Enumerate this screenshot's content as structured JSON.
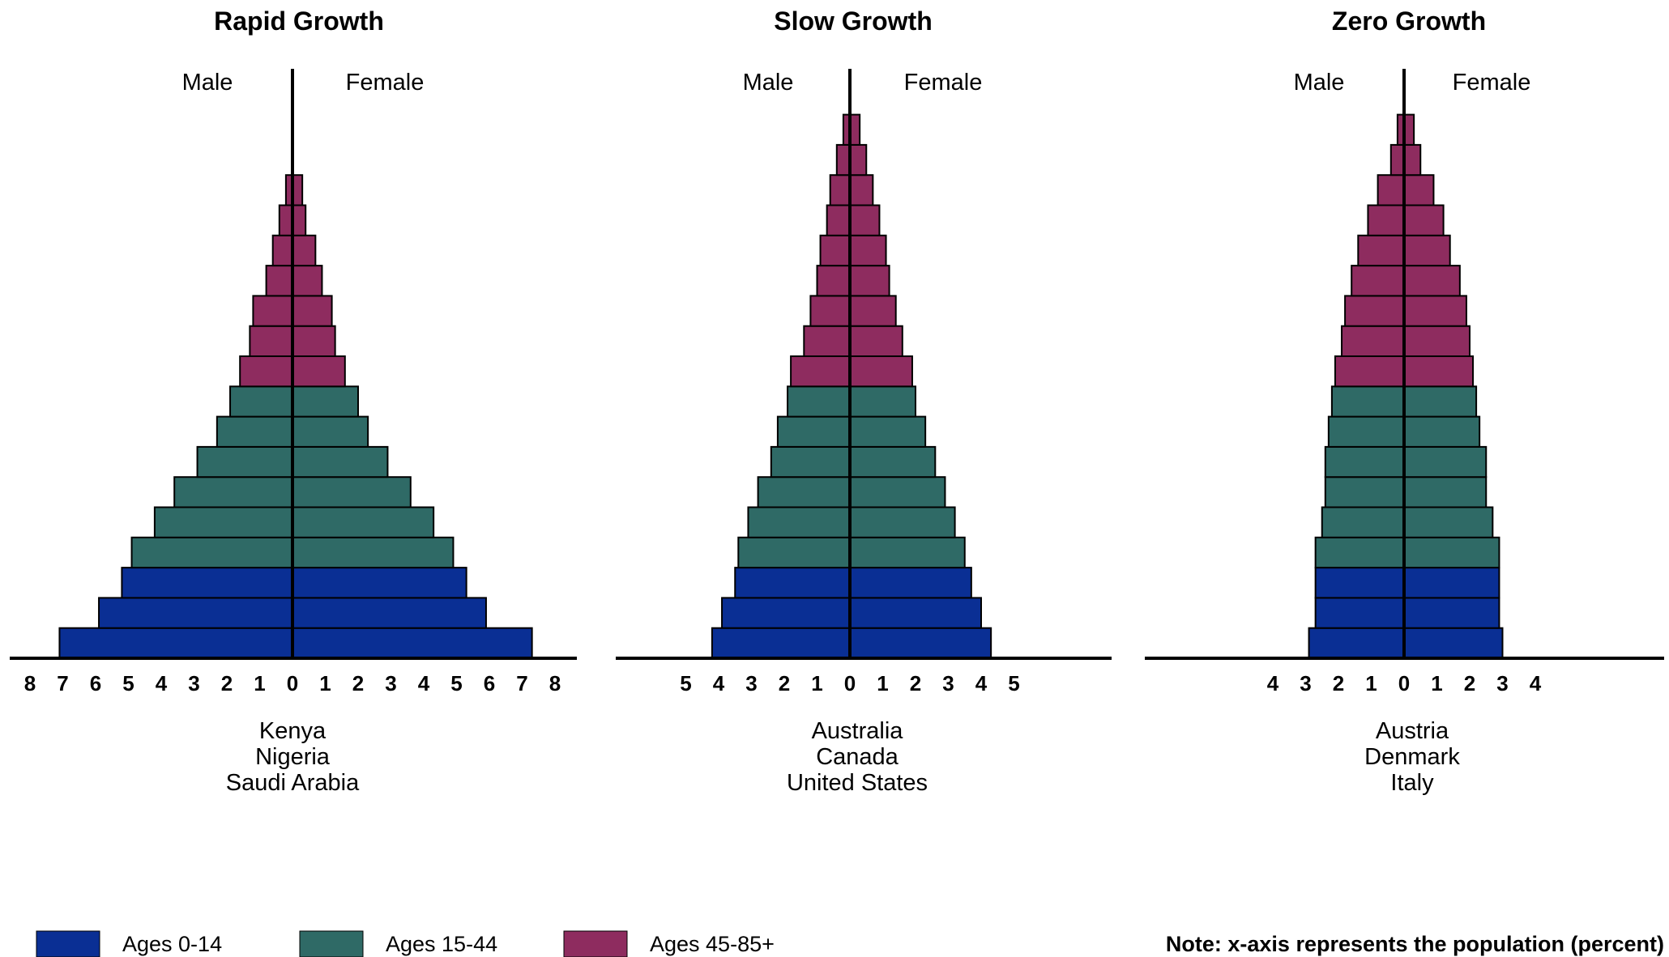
{
  "colors": {
    "ages_0_14": "#0a2f94",
    "ages_15_44": "#2f6a66",
    "ages_45_85": "#8e2c5f",
    "bar_stroke": "#000000"
  },
  "legend": [
    {
      "key": "ages_0_14",
      "label": "Ages 0-14"
    },
    {
      "key": "ages_15_44",
      "label": "Ages 15-44"
    },
    {
      "key": "ages_45_85",
      "label": "Ages 45-85+"
    }
  ],
  "note": "Note: x-axis represents the population (percent)",
  "chart_data": [
    {
      "type": "bar",
      "title": "Rapid Growth",
      "male_label": "Male",
      "female_label": "Female",
      "countries": [
        "Kenya",
        "Nigeria",
        "Saudi Arabia"
      ],
      "xticks": [
        8,
        7,
        6,
        5,
        4,
        3,
        2,
        1,
        0,
        1,
        2,
        3,
        4,
        5,
        6,
        7,
        8
      ],
      "xlim": [
        -8,
        8
      ],
      "bar_groups": [
        "ages_0_14",
        "ages_0_14",
        "ages_0_14",
        "ages_15_44",
        "ages_15_44",
        "ages_15_44",
        "ages_15_44",
        "ages_15_44",
        "ages_15_44",
        "ages_45_85",
        "ages_45_85",
        "ages_45_85",
        "ages_45_85",
        "ages_45_85",
        "ages_45_85",
        "ages_45_85"
      ],
      "male": [
        7.1,
        5.9,
        5.2,
        4.9,
        4.2,
        3.6,
        2.9,
        2.3,
        1.9,
        1.6,
        1.3,
        1.2,
        0.8,
        0.6,
        0.4,
        0.2
      ],
      "female": [
        7.3,
        5.9,
        5.3,
        4.9,
        4.3,
        3.6,
        2.9,
        2.3,
        2.0,
        1.6,
        1.3,
        1.2,
        0.9,
        0.7,
        0.4,
        0.3
      ]
    },
    {
      "type": "bar",
      "title": "Slow Growth",
      "male_label": "Male",
      "female_label": "Female",
      "countries": [
        "Australia",
        "Canada",
        "United States"
      ],
      "xticks": [
        5,
        4,
        3,
        2,
        1,
        0,
        1,
        2,
        3,
        4,
        5
      ],
      "xlim": [
        -5,
        5
      ],
      "bar_groups": [
        "ages_0_14",
        "ages_0_14",
        "ages_0_14",
        "ages_15_44",
        "ages_15_44",
        "ages_15_44",
        "ages_15_44",
        "ages_15_44",
        "ages_15_44",
        "ages_45_85",
        "ages_45_85",
        "ages_45_85",
        "ages_45_85",
        "ages_45_85",
        "ages_45_85",
        "ages_45_85",
        "ages_45_85",
        "ages_45_85"
      ],
      "male": [
        4.2,
        3.9,
        3.5,
        3.4,
        3.1,
        2.8,
        2.4,
        2.2,
        1.9,
        1.8,
        1.4,
        1.2,
        1.0,
        0.9,
        0.7,
        0.6,
        0.4,
        0.2
      ],
      "female": [
        4.3,
        4.0,
        3.7,
        3.5,
        3.2,
        2.9,
        2.6,
        2.3,
        2.0,
        1.9,
        1.6,
        1.4,
        1.2,
        1.1,
        0.9,
        0.7,
        0.5,
        0.3
      ]
    },
    {
      "type": "bar",
      "title": "Zero Growth",
      "male_label": "Male",
      "female_label": "Female",
      "countries": [
        "Austria",
        "Denmark",
        "Italy"
      ],
      "xticks": [
        4,
        3,
        2,
        1,
        0,
        1,
        2,
        3,
        4
      ],
      "xlim": [
        -4,
        4
      ],
      "bar_groups": [
        "ages_0_14",
        "ages_0_14",
        "ages_0_14",
        "ages_15_44",
        "ages_15_44",
        "ages_15_44",
        "ages_15_44",
        "ages_15_44",
        "ages_15_44",
        "ages_45_85",
        "ages_45_85",
        "ages_45_85",
        "ages_45_85",
        "ages_45_85",
        "ages_45_85",
        "ages_45_85",
        "ages_45_85",
        "ages_45_85"
      ],
      "male": [
        2.9,
        2.7,
        2.7,
        2.7,
        2.5,
        2.4,
        2.4,
        2.3,
        2.2,
        2.1,
        1.9,
        1.8,
        1.6,
        1.4,
        1.1,
        0.8,
        0.4,
        0.2
      ],
      "female": [
        3.0,
        2.9,
        2.9,
        2.9,
        2.7,
        2.5,
        2.5,
        2.3,
        2.2,
        2.1,
        2.0,
        1.9,
        1.7,
        1.4,
        1.2,
        0.9,
        0.5,
        0.3
      ]
    }
  ]
}
